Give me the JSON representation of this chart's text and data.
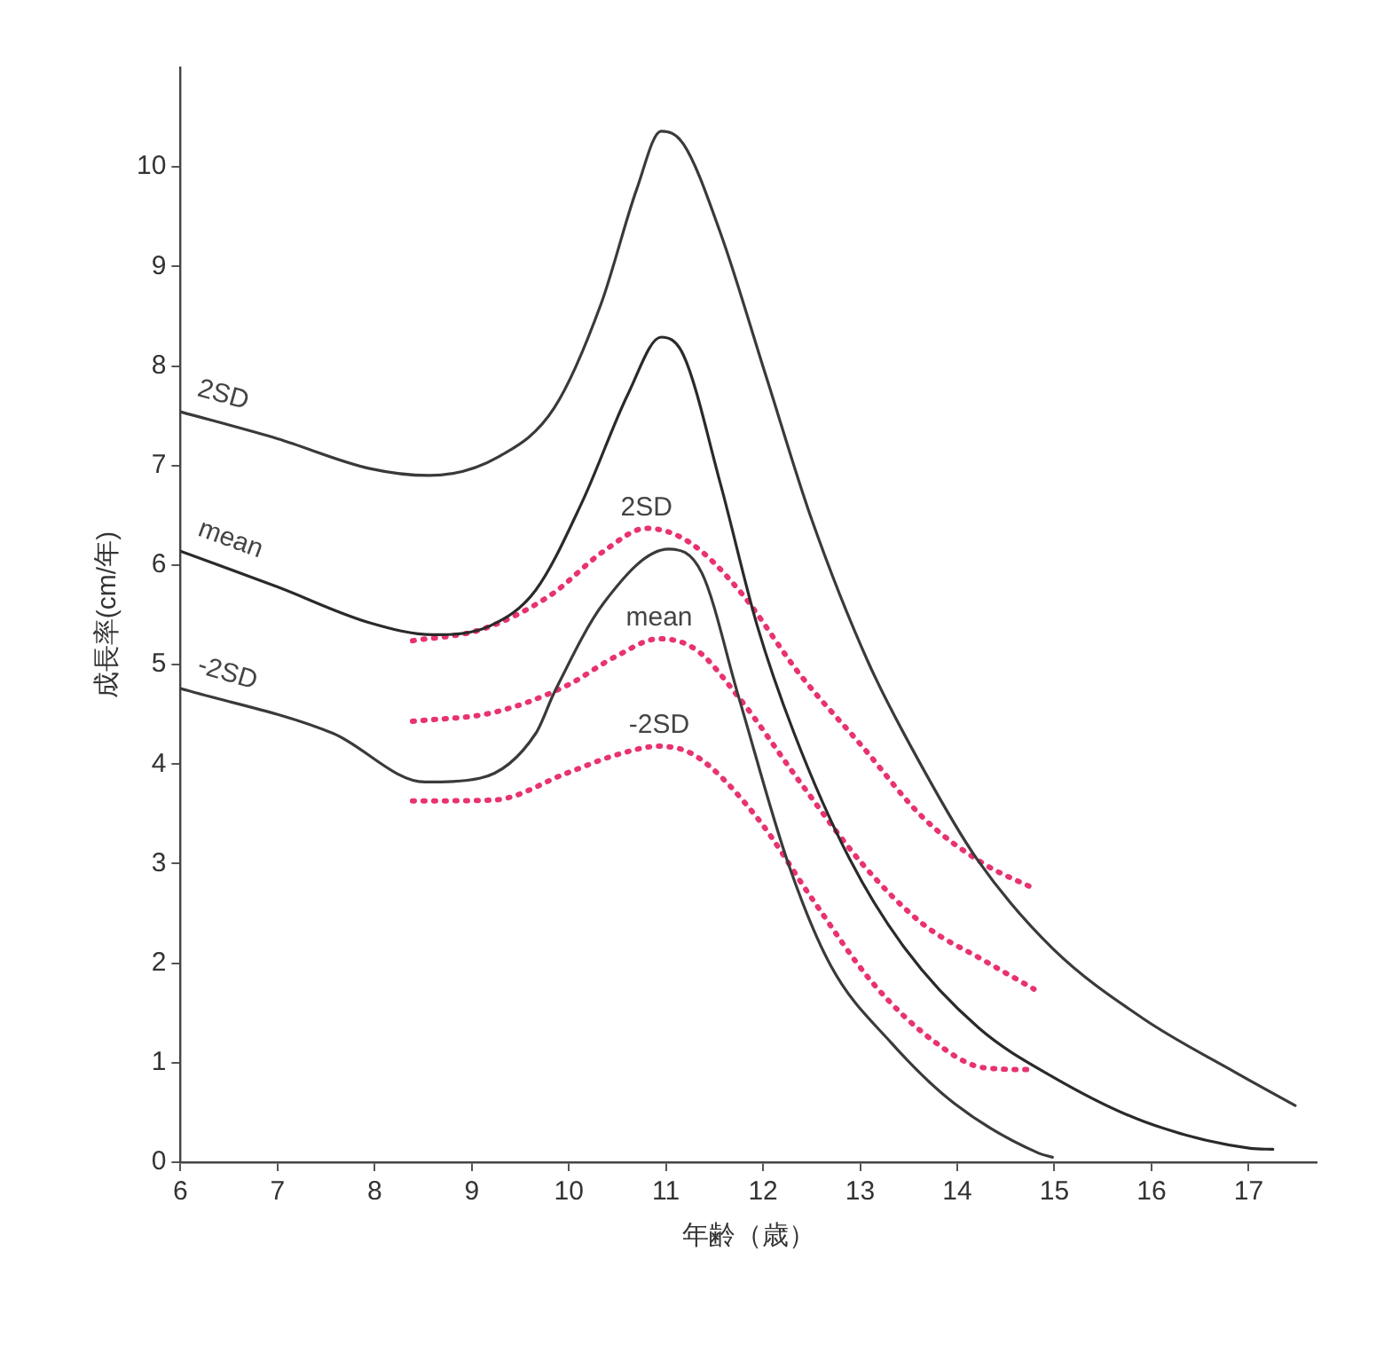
{
  "chart_data": {
    "type": "line",
    "xlabel": "年齢（歳）",
    "ylabel": "成長率(cm/年)",
    "xlim": [
      6,
      17.7
    ],
    "ylim": [
      0,
      11
    ],
    "xticks": [
      6,
      7,
      8,
      9,
      10,
      11,
      12,
      13,
      14,
      15,
      16,
      17
    ],
    "yticks": [
      0,
      1,
      2,
      3,
      4,
      5,
      6,
      7,
      8,
      9,
      10
    ],
    "marker": "none",
    "legend": false,
    "series": [
      {
        "name": "2SD",
        "color": "#3a3a3a",
        "line_style": "solid",
        "x": [
          6,
          7,
          7.95,
          8.56,
          9.28,
          9.85,
          10.33,
          10.7,
          10.95,
          11.18,
          11.56,
          12.03,
          12.5,
          13.08,
          13.65,
          14.2,
          14.98,
          15.92,
          16.87,
          17.48
        ],
        "values": [
          7.54,
          7.27,
          6.97,
          6.9,
          7.09,
          7.58,
          8.62,
          9.78,
          10.36,
          10.23,
          9.34,
          7.9,
          6.46,
          5.03,
          3.95,
          3.05,
          2.15,
          1.44,
          0.9,
          0.57
        ]
      },
      {
        "name": "mean",
        "color": "#2a2a2a",
        "line_style": "solid",
        "x": [
          6,
          7,
          7.95,
          8.6,
          9.19,
          9.66,
          10.14,
          10.61,
          10.95,
          11.18,
          11.56,
          11.94,
          12.32,
          12.89,
          13.46,
          14.22,
          14.98,
          15.92,
          17.02,
          17.25
        ],
        "values": [
          6.14,
          5.78,
          5.42,
          5.3,
          5.39,
          5.75,
          6.64,
          7.72,
          8.29,
          8.11,
          6.82,
          5.39,
          4.31,
          3.05,
          2.15,
          1.35,
          0.86,
          0.41,
          0.14,
          0.13
        ]
      },
      {
        "name": "-2SD",
        "color": "#3a3a3a",
        "line_style": "solid",
        "x": [
          6,
          7.57,
          8.52,
          9.09,
          9.66,
          9.85,
          10.36,
          11.03,
          11.37,
          11.75,
          12.26,
          12.7,
          13.32,
          13.97,
          14.84,
          14.98
        ],
        "values": [
          4.76,
          4.31,
          3.82,
          3.86,
          4.31,
          4.72,
          5.62,
          6.16,
          5.92,
          4.67,
          3.0,
          1.97,
          1.2,
          0.59,
          0.09,
          0.05
        ]
      },
      {
        "name": "2SD",
        "color": "#e8336e",
        "line_style": "dotted",
        "x": [
          8.39,
          9.09,
          9.8,
          10.36,
          10.8,
          11.24,
          11.75,
          12.38,
          13.02,
          13.65,
          14.27,
          14.79
        ],
        "values": [
          5.24,
          5.35,
          5.69,
          6.14,
          6.37,
          6.23,
          5.75,
          4.9,
          4.18,
          3.46,
          3.0,
          2.75
        ]
      },
      {
        "name": "mean",
        "color": "#e8336e",
        "line_style": "dotted",
        "x": [
          8.39,
          9.23,
          9.98,
          10.48,
          10.93,
          11.31,
          11.75,
          12.38,
          13.02,
          13.65,
          14.27,
          14.79
        ],
        "values": [
          4.43,
          4.52,
          4.79,
          5.08,
          5.26,
          5.15,
          4.67,
          3.82,
          3.0,
          2.39,
          2.03,
          1.74
        ]
      },
      {
        "name": "-2SD",
        "color": "#e8336e",
        "line_style": "dotted",
        "x": [
          8.39,
          9.23,
          9.98,
          10.48,
          10.93,
          11.31,
          11.94,
          12.51,
          13.13,
          13.78,
          14.27,
          14.79
        ],
        "values": [
          3.63,
          3.64,
          3.91,
          4.09,
          4.18,
          4.08,
          3.46,
          2.64,
          1.8,
          1.2,
          0.95,
          0.93
        ]
      }
    ]
  }
}
